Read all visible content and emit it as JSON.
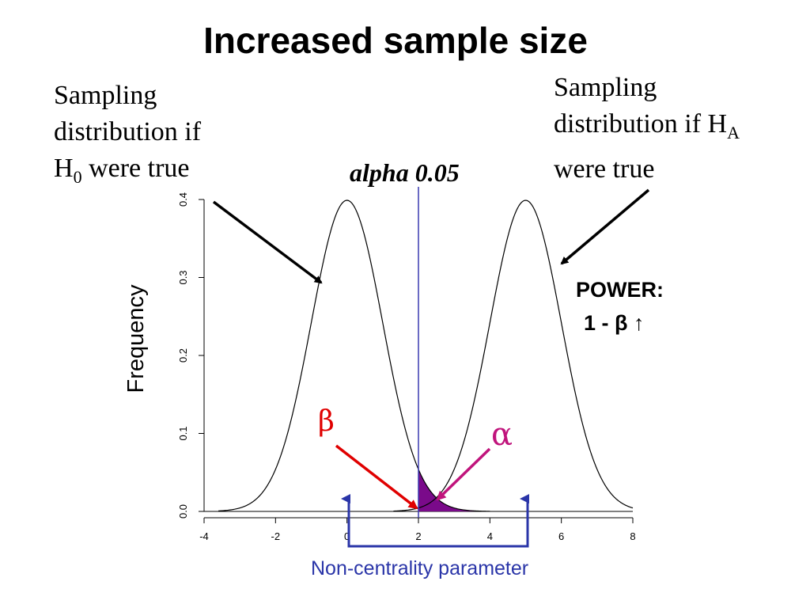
{
  "slide": {
    "title": "Increased sample size",
    "h0_label": {
      "line1": "Sampling",
      "line2": "distribution if",
      "line3_prefix": "H",
      "line3_sub": "0",
      "line3_suffix": " were true"
    },
    "ha_label": {
      "line1": "Sampling",
      "line2_prefix": "distribution if H",
      "line2_sub": "A",
      "line3": "were true"
    },
    "alpha_label": "alpha 0.05",
    "power": {
      "line1": "POWER:",
      "line2": "1 - β ↑"
    },
    "beta_symbol": "β",
    "alpha_symbol": "α",
    "ncp_label": "Non-centrality parameter",
    "colors": {
      "critical_line": "#3a3ab0",
      "shade": "#7a0a8a",
      "beta_arrow": "#e00000",
      "alpha_arrow": "#c0147c",
      "ncp_bracket": "#2a35a8"
    }
  },
  "chart_data": {
    "type": "line",
    "xlabel": "",
    "ylabel": "Frequency",
    "xlim": [
      -4,
      8
    ],
    "ylim": [
      0,
      0.4
    ],
    "x_ticks": [
      -4,
      -2,
      0,
      2,
      4,
      6,
      8
    ],
    "y_ticks": [
      0.0,
      0.1,
      0.2,
      0.3,
      0.4
    ],
    "y_tick_labels": [
      "0.0",
      "0.1",
      "0.2",
      "0.3",
      "0.4"
    ],
    "series": [
      {
        "distribution": "normal",
        "mean": 0,
        "sd": 1
      },
      {
        "distribution": "normal",
        "mean": 5,
        "sd": 1
      }
    ],
    "critical_value": 2.0,
    "alpha": 0.05,
    "ncp": 5
  }
}
